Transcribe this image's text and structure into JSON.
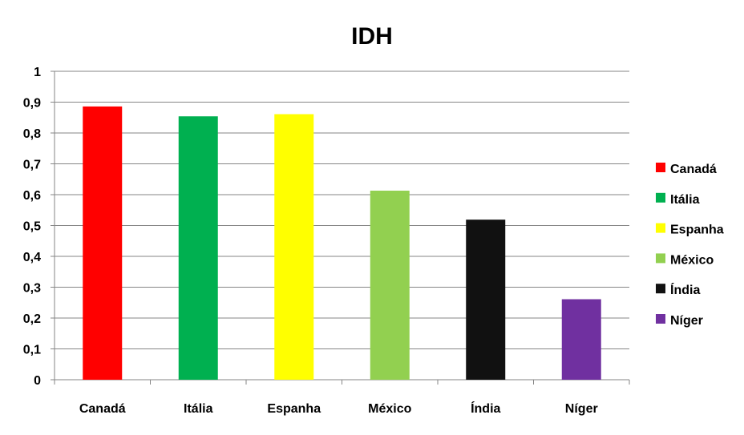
{
  "chart_data": {
    "type": "bar",
    "title": "IDH",
    "xlabel": "",
    "ylabel": "",
    "categories": [
      "Canadá",
      "Itália",
      "Espanha",
      "México",
      "Índia",
      "Níger"
    ],
    "values": [
      0.886,
      0.854,
      0.861,
      0.613,
      0.519,
      0.261
    ],
    "colors": [
      "#ff0000",
      "#00b050",
      "#ffff00",
      "#92d050",
      "#111111",
      "#7030a0"
    ],
    "ylim": [
      0,
      1
    ],
    "yticks": [
      "0",
      "0,1",
      "0,2",
      "0,3",
      "0,4",
      "0,5",
      "0,6",
      "0,7",
      "0,8",
      "0,9",
      "1"
    ],
    "grid": true,
    "legend_position": "right",
    "legend": [
      "Canadá",
      "Itália",
      "Espanha",
      "México",
      "Índia",
      "Níger"
    ]
  }
}
